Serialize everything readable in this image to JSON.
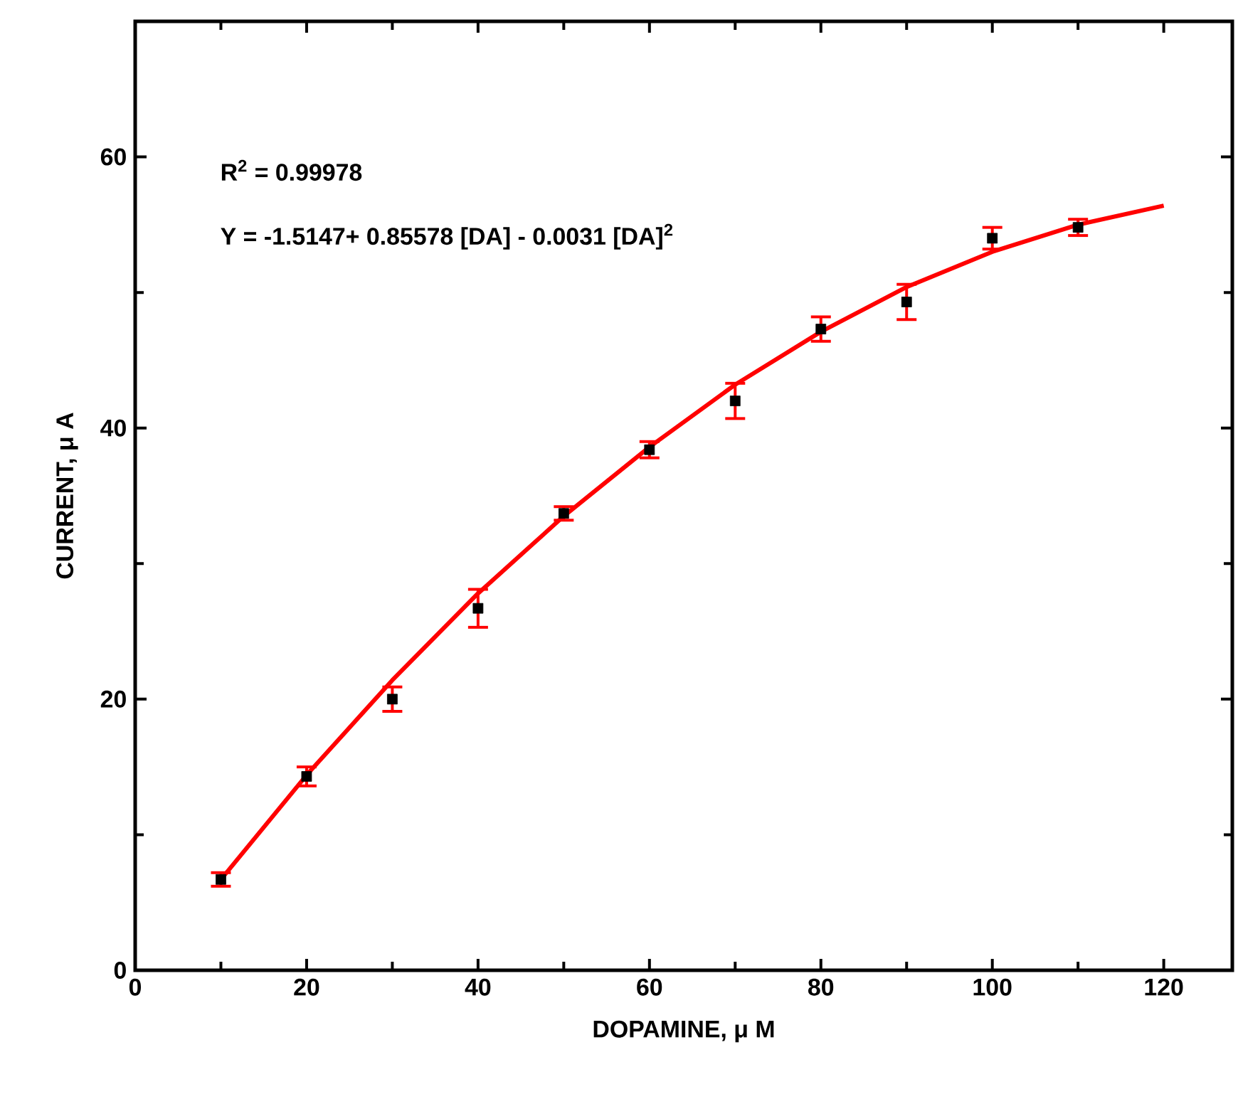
{
  "chart_data": {
    "type": "scatter",
    "xlabel": "DOPAMINE, μ M",
    "ylabel": "CURRENT, μ A",
    "annotations": [
      "R$^{2}$ = 0.99978",
      "Y = -1.5147+ 0.85578 [DA] - 0.0031 [DA]$^{2}$"
    ],
    "x": [
      10,
      20,
      30,
      40,
      50,
      60,
      70,
      80,
      90,
      100,
      110
    ],
    "series": [
      {
        "color": "#000000",
        "marker": "square",
        "values": [
          6.7,
          14.3,
          20.0,
          26.7,
          33.7,
          38.4,
          42.0,
          47.3,
          49.3,
          54.0,
          54.8
        ],
        "errors": [
          0.5,
          0.7,
          0.9,
          1.4,
          0.5,
          0.6,
          1.3,
          0.9,
          1.3,
          0.8,
          0.6
        ]
      },
      {
        "type": "line",
        "color": "#ff0000",
        "marker": "none",
        "x": [
          10,
          20,
          30,
          40,
          50,
          60,
          70,
          80,
          90,
          100,
          110,
          120
        ],
        "values": [
          6.7,
          14.4,
          21.4,
          27.8,
          33.5,
          38.6,
          43.2,
          47.1,
          50.4,
          53.0,
          55.0,
          56.4
        ]
      }
    ],
    "xlim": [
      0,
      128
    ],
    "ylim": [
      0,
      70
    ],
    "xticks": [
      0,
      20,
      40,
      60,
      80,
      100,
      120
    ],
    "yticks": [
      0,
      20,
      40,
      60
    ]
  }
}
